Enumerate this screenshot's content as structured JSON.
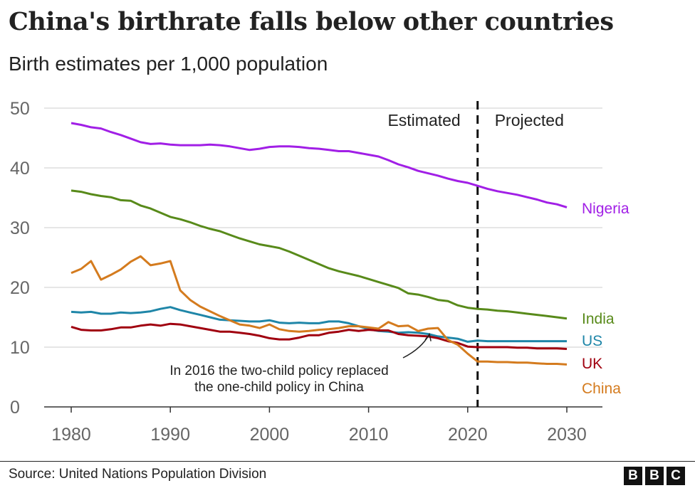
{
  "chart_data": {
    "type": "line",
    "title": "China's birthrate falls below other countries",
    "subtitle": "Birth estimates per 1,000 population",
    "xlabel": "",
    "ylabel": "",
    "xlim": [
      1980,
      2030
    ],
    "ylim": [
      0,
      50
    ],
    "x_ticks": [
      "1980",
      "1990",
      "2000",
      "2010",
      "2020",
      "2030"
    ],
    "y_ticks": [
      "0",
      "10",
      "20",
      "30",
      "40",
      "50"
    ],
    "grid": "horizontal",
    "legend": "direct labels at right",
    "divider": {
      "year": 2021,
      "left_label": "Estimated",
      "right_label": "Projected"
    },
    "annotation": {
      "lines": [
        "In 2016 the two-child policy replaced",
        "the one-child policy in China"
      ],
      "year": 2016,
      "value": 12.9
    },
    "series": [
      {
        "name": "Nigeria",
        "color": "#a11fe6",
        "points": [
          [
            1980,
            47.5
          ],
          [
            1981,
            47.2
          ],
          [
            1982,
            46.8
          ],
          [
            1983,
            46.6
          ],
          [
            1984,
            46.0
          ],
          [
            1985,
            45.5
          ],
          [
            1986,
            44.9
          ],
          [
            1987,
            44.3
          ],
          [
            1988,
            44.0
          ],
          [
            1989,
            44.1
          ],
          [
            1990,
            43.9
          ],
          [
            1991,
            43.8
          ],
          [
            1992,
            43.8
          ],
          [
            1993,
            43.8
          ],
          [
            1994,
            43.9
          ],
          [
            1995,
            43.8
          ],
          [
            1996,
            43.6
          ],
          [
            1997,
            43.3
          ],
          [
            1998,
            43.0
          ],
          [
            1999,
            43.2
          ],
          [
            2000,
            43.5
          ],
          [
            2001,
            43.6
          ],
          [
            2002,
            43.6
          ],
          [
            2003,
            43.5
          ],
          [
            2004,
            43.3
          ],
          [
            2005,
            43.2
          ],
          [
            2006,
            43.0
          ],
          [
            2007,
            42.8
          ],
          [
            2008,
            42.8
          ],
          [
            2009,
            42.5
          ],
          [
            2010,
            42.2
          ],
          [
            2011,
            41.9
          ],
          [
            2012,
            41.3
          ],
          [
            2013,
            40.6
          ],
          [
            2014,
            40.1
          ],
          [
            2015,
            39.5
          ],
          [
            2016,
            39.1
          ],
          [
            2017,
            38.7
          ],
          [
            2018,
            38.2
          ],
          [
            2019,
            37.8
          ],
          [
            2020,
            37.5
          ],
          [
            2021,
            37.0
          ],
          [
            2022,
            36.5
          ],
          [
            2023,
            36.1
          ],
          [
            2024,
            35.8
          ],
          [
            2025,
            35.5
          ],
          [
            2026,
            35.1
          ],
          [
            2027,
            34.7
          ],
          [
            2028,
            34.2
          ],
          [
            2029,
            33.9
          ],
          [
            2030,
            33.4
          ]
        ]
      },
      {
        "name": "India",
        "color": "#588a1a",
        "points": [
          [
            1980,
            36.2
          ],
          [
            1981,
            36.0
          ],
          [
            1982,
            35.6
          ],
          [
            1983,
            35.3
          ],
          [
            1984,
            35.1
          ],
          [
            1985,
            34.6
          ],
          [
            1986,
            34.5
          ],
          [
            1987,
            33.7
          ],
          [
            1988,
            33.2
          ],
          [
            1989,
            32.5
          ],
          [
            1990,
            31.8
          ],
          [
            1991,
            31.4
          ],
          [
            1992,
            30.9
          ],
          [
            1993,
            30.3
          ],
          [
            1994,
            29.8
          ],
          [
            1995,
            29.4
          ],
          [
            1996,
            28.8
          ],
          [
            1997,
            28.2
          ],
          [
            1998,
            27.7
          ],
          [
            1999,
            27.2
          ],
          [
            2000,
            26.9
          ],
          [
            2001,
            26.6
          ],
          [
            2002,
            26.0
          ],
          [
            2003,
            25.3
          ],
          [
            2004,
            24.6
          ],
          [
            2005,
            23.9
          ],
          [
            2006,
            23.2
          ],
          [
            2007,
            22.7
          ],
          [
            2008,
            22.3
          ],
          [
            2009,
            21.9
          ],
          [
            2010,
            21.4
          ],
          [
            2011,
            20.9
          ],
          [
            2012,
            20.4
          ],
          [
            2013,
            19.9
          ],
          [
            2014,
            19.0
          ],
          [
            2015,
            18.8
          ],
          [
            2016,
            18.4
          ],
          [
            2017,
            17.9
          ],
          [
            2018,
            17.7
          ],
          [
            2019,
            17.0
          ],
          [
            2020,
            16.6
          ],
          [
            2021,
            16.4
          ],
          [
            2022,
            16.3
          ],
          [
            2023,
            16.1
          ],
          [
            2024,
            16.0
          ],
          [
            2025,
            15.8
          ],
          [
            2026,
            15.6
          ],
          [
            2027,
            15.4
          ],
          [
            2028,
            15.2
          ],
          [
            2029,
            15.0
          ],
          [
            2030,
            14.8
          ]
        ]
      },
      {
        "name": "US",
        "color": "#1f86a8",
        "points": [
          [
            1980,
            15.9
          ],
          [
            1981,
            15.8
          ],
          [
            1982,
            15.9
          ],
          [
            1983,
            15.6
          ],
          [
            1984,
            15.6
          ],
          [
            1985,
            15.8
          ],
          [
            1986,
            15.7
          ],
          [
            1987,
            15.8
          ],
          [
            1988,
            16.0
          ],
          [
            1989,
            16.4
          ],
          [
            1990,
            16.7
          ],
          [
            1991,
            16.2
          ],
          [
            1992,
            15.8
          ],
          [
            1993,
            15.4
          ],
          [
            1994,
            15.0
          ],
          [
            1995,
            14.6
          ],
          [
            1996,
            14.5
          ],
          [
            1997,
            14.4
          ],
          [
            1998,
            14.3
          ],
          [
            1999,
            14.3
          ],
          [
            2000,
            14.5
          ],
          [
            2001,
            14.1
          ],
          [
            2002,
            14.0
          ],
          [
            2003,
            14.1
          ],
          [
            2004,
            14.0
          ],
          [
            2005,
            14.0
          ],
          [
            2006,
            14.3
          ],
          [
            2007,
            14.3
          ],
          [
            2008,
            14.0
          ],
          [
            2009,
            13.5
          ],
          [
            2010,
            13.0
          ],
          [
            2011,
            12.7
          ],
          [
            2012,
            12.6
          ],
          [
            2013,
            12.4
          ],
          [
            2014,
            12.5
          ],
          [
            2015,
            12.4
          ],
          [
            2016,
            12.2
          ],
          [
            2017,
            11.8
          ],
          [
            2018,
            11.6
          ],
          [
            2019,
            11.4
          ],
          [
            2020,
            10.9
          ],
          [
            2021,
            11.1
          ],
          [
            2022,
            11.0
          ],
          [
            2023,
            11.0
          ],
          [
            2024,
            11.0
          ],
          [
            2025,
            11.0
          ],
          [
            2026,
            11.0
          ],
          [
            2027,
            11.0
          ],
          [
            2028,
            11.0
          ],
          [
            2029,
            11.0
          ],
          [
            2030,
            11.0
          ]
        ]
      },
      {
        "name": "UK",
        "color": "#a0000f",
        "points": [
          [
            1980,
            13.4
          ],
          [
            1981,
            12.9
          ],
          [
            1982,
            12.8
          ],
          [
            1983,
            12.8
          ],
          [
            1984,
            13.0
          ],
          [
            1985,
            13.3
          ],
          [
            1986,
            13.3
          ],
          [
            1987,
            13.6
          ],
          [
            1988,
            13.8
          ],
          [
            1989,
            13.6
          ],
          [
            1990,
            13.9
          ],
          [
            1991,
            13.8
          ],
          [
            1992,
            13.5
          ],
          [
            1993,
            13.2
          ],
          [
            1994,
            12.9
          ],
          [
            1995,
            12.6
          ],
          [
            1996,
            12.6
          ],
          [
            1997,
            12.4
          ],
          [
            1998,
            12.2
          ],
          [
            1999,
            11.9
          ],
          [
            2000,
            11.5
          ],
          [
            2001,
            11.3
          ],
          [
            2002,
            11.3
          ],
          [
            2003,
            11.6
          ],
          [
            2004,
            12.0
          ],
          [
            2005,
            12.0
          ],
          [
            2006,
            12.4
          ],
          [
            2007,
            12.6
          ],
          [
            2008,
            12.9
          ],
          [
            2009,
            12.7
          ],
          [
            2010,
            12.9
          ],
          [
            2011,
            12.8
          ],
          [
            2012,
            12.8
          ],
          [
            2013,
            12.2
          ],
          [
            2014,
            12.0
          ],
          [
            2015,
            11.9
          ],
          [
            2016,
            11.8
          ],
          [
            2017,
            11.5
          ],
          [
            2018,
            11.0
          ],
          [
            2019,
            10.7
          ],
          [
            2020,
            10.1
          ],
          [
            2021,
            10.0
          ],
          [
            2022,
            10.0
          ],
          [
            2023,
            10.0
          ],
          [
            2024,
            10.0
          ],
          [
            2025,
            9.9
          ],
          [
            2026,
            9.9
          ],
          [
            2027,
            9.8
          ],
          [
            2028,
            9.8
          ],
          [
            2029,
            9.8
          ],
          [
            2030,
            9.7
          ]
        ]
      },
      {
        "name": "China",
        "color": "#d47b1e",
        "points": [
          [
            1980,
            22.4
          ],
          [
            1981,
            23.1
          ],
          [
            1982,
            24.4
          ],
          [
            1983,
            21.3
          ],
          [
            1984,
            22.1
          ],
          [
            1985,
            23.0
          ],
          [
            1986,
            24.3
          ],
          [
            1987,
            25.2
          ],
          [
            1988,
            23.7
          ],
          [
            1989,
            24.0
          ],
          [
            1990,
            24.4
          ],
          [
            1991,
            19.5
          ],
          [
            1992,
            17.9
          ],
          [
            1993,
            16.8
          ],
          [
            1994,
            16.0
          ],
          [
            1995,
            15.2
          ],
          [
            1996,
            14.5
          ],
          [
            1997,
            13.8
          ],
          [
            1998,
            13.6
          ],
          [
            1999,
            13.2
          ],
          [
            2000,
            13.8
          ],
          [
            2001,
            13.0
          ],
          [
            2002,
            12.7
          ],
          [
            2003,
            12.6
          ],
          [
            2004,
            12.7
          ],
          [
            2005,
            12.9
          ],
          [
            2006,
            13.0
          ],
          [
            2007,
            13.2
          ],
          [
            2008,
            13.5
          ],
          [
            2009,
            13.5
          ],
          [
            2010,
            13.3
          ],
          [
            2011,
            13.1
          ],
          [
            2012,
            14.2
          ],
          [
            2013,
            13.5
          ],
          [
            2014,
            13.6
          ],
          [
            2015,
            12.7
          ],
          [
            2016,
            13.1
          ],
          [
            2017,
            13.2
          ],
          [
            2018,
            11.2
          ],
          [
            2019,
            10.4
          ],
          [
            2020,
            8.9
          ],
          [
            2021,
            7.6
          ],
          [
            2022,
            7.6
          ],
          [
            2023,
            7.5
          ],
          [
            2024,
            7.5
          ],
          [
            2025,
            7.4
          ],
          [
            2026,
            7.4
          ],
          [
            2027,
            7.3
          ],
          [
            2028,
            7.2
          ],
          [
            2029,
            7.2
          ],
          [
            2030,
            7.1
          ]
        ]
      }
    ]
  },
  "footer": {
    "source": "Source: United Nations Population Division",
    "logo": [
      "B",
      "B",
      "C"
    ]
  }
}
